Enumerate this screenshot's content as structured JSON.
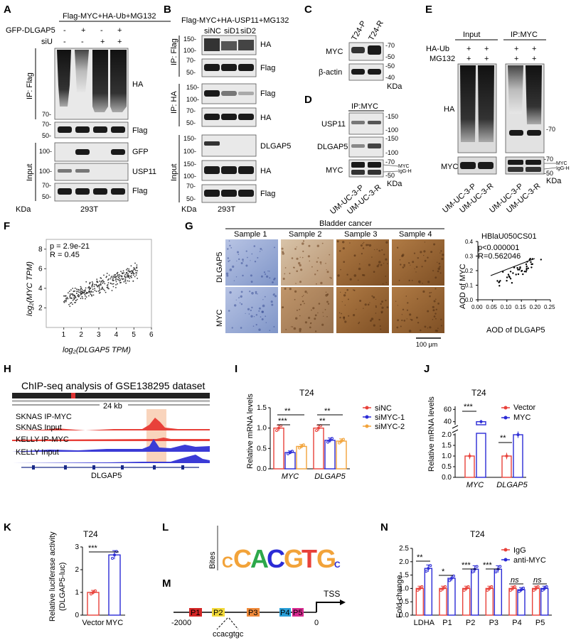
{
  "colors": {
    "red": "#e8413a",
    "blue": "#2b2bd6",
    "orange": "#f2a33a",
    "blot": "#1a1a1a",
    "ihc_blue": "#8ea3d1",
    "ihc_brown": "#9a6232",
    "scatter_line": "#000000"
  },
  "panels": {
    "A": {
      "letter": "A",
      "top": "Flag-MYC+HA-Ub+MG132",
      "rows": [
        "GFP-DLGAP5",
        "siU"
      ],
      "row_values": [
        [
          "-",
          "+",
          "-",
          "+"
        ],
        [
          "-",
          "-",
          "+",
          "+"
        ]
      ],
      "ip_label": "IP: Flag",
      "input_label": "Input",
      "markers": [
        "70-",
        "70-",
        "50-",
        "100-",
        "100-",
        "70-",
        "50-"
      ],
      "bands": [
        "HA",
        "Flag",
        "GFP",
        "USP11",
        "Flag"
      ],
      "kda": "KDa",
      "cell": "293T"
    },
    "B": {
      "letter": "B",
      "top": "Flag-MYC+HA-USP11+MG132",
      "lanes": [
        "siNC",
        "siD1",
        "siD2"
      ],
      "ip1": "IP: Flag",
      "ip2": "IP: HA",
      "input_label": "Input",
      "markers": [
        "150-",
        "100-",
        "70-",
        "50-",
        "150-",
        "100-",
        "70-",
        "50-",
        "150-",
        "100-",
        "150-",
        "100-",
        "70-",
        "50-"
      ],
      "bands": [
        "HA",
        "Flag",
        "Flag",
        "HA",
        "DLGAP5",
        "HA",
        "Flag"
      ],
      "kda": "KDa",
      "cell": "293T"
    },
    "C": {
      "letter": "C",
      "lanes": [
        "T24-P",
        "T24-R"
      ],
      "bands": [
        "MYC",
        "β-actin"
      ],
      "markers": [
        "-70",
        "-50",
        "-50",
        "-40"
      ],
      "kda": "KDa"
    },
    "D": {
      "letter": "D",
      "ip": "IP:MYC",
      "bands": [
        "USP11",
        "DLGAP5",
        "MYC"
      ],
      "markers": [
        "-150",
        "-100",
        "-150",
        "-100",
        "-70",
        "-50"
      ],
      "side": [
        "MYC",
        "IgG-H"
      ],
      "kda": "KDa",
      "lanes": [
        "UM-UC-3-P",
        "UM-UC-3-R"
      ]
    },
    "E": {
      "letter": "E",
      "groups": [
        "Input",
        "IP:MYC"
      ],
      "rows": [
        "HA-Ub",
        "MG132"
      ],
      "plus": "+",
      "bands": [
        "HA",
        "MYC"
      ],
      "markers": [
        "-70",
        "-70",
        "-50"
      ],
      "side": [
        "MYC",
        "IgG-H"
      ],
      "kda": "KDa",
      "lanes": [
        "UM-UC-3-P",
        "UM-UC-3-R",
        "UM-UC-3-P",
        "UM-UC-3-R"
      ]
    },
    "F": {
      "letter": "F",
      "stat1": "p = 2.9e-21",
      "stat2": "R = 0.45",
      "ylabel": "log₂(MYC TPM)",
      "xlabel": "log₂(DLGAP5 TPM)"
    },
    "G": {
      "letter": "G",
      "title": "Bladder cancer",
      "samples": [
        "Sample 1",
        "Sample 2",
        "Sample 3",
        "Sample 4"
      ],
      "rows": [
        "DLGAP5",
        "MYC"
      ],
      "scale": "100 μm",
      "scatter_title": "HBlaU050CS01",
      "stat1": "p<0.000001",
      "stat2": "R=0.562046",
      "ylabel": "AOD of MYC",
      "xlabel": "AOD of DLGAP5"
    },
    "H": {
      "letter": "H",
      "title": "ChIP-seq analysis of GSE138295 dataset",
      "scale": "24 kb",
      "tracks": [
        "SKNAS IP-MYC",
        "SKNAS Input",
        "KELLY IP-MYC",
        "KELLY Input"
      ],
      "gene": "DLGAP5"
    },
    "I": {
      "letter": "I",
      "title": "T24",
      "ylabel": "Relative mRNA levels",
      "legend": [
        "siNC",
        "siMYC-1",
        "siMYC-2"
      ],
      "sig": [
        "***",
        "**",
        "**",
        "**"
      ]
    },
    "J": {
      "letter": "J",
      "title": "T24",
      "ylabel": "Relative mRNA levels",
      "legend": [
        "Vector",
        "MYC"
      ],
      "sig": [
        "***",
        "**"
      ]
    },
    "K": {
      "letter": "K",
      "title": "T24",
      "ylabel1": "Relative luciferase activity",
      "ylabel2": "(DLGAP5-luc)",
      "sig": [
        "***"
      ]
    },
    "L": {
      "letter": "L",
      "ylabel": "Bites",
      "motif": [
        "C",
        "C",
        "A",
        "C",
        "G",
        "T",
        "G",
        "C"
      ]
    },
    "M": {
      "letter": "M",
      "boxes": [
        "P1",
        "P2",
        "P3",
        "P4",
        "P5"
      ],
      "tss": "TSS",
      "start": "-2000",
      "end": "0",
      "site": "ccacgtgc"
    },
    "N": {
      "letter": "N",
      "title": "T24",
      "ylabel": "Fold change",
      "legend": [
        "IgG",
        "anti-MYC"
      ],
      "sig": [
        "**",
        "*",
        "***",
        "***",
        "ns",
        "ns"
      ]
    }
  },
  "chart_data": [
    {
      "type": "scatter",
      "panel": "F",
      "xlabel": "log2(DLGAP5 TPM)",
      "ylabel": "log2(MYC TPM)",
      "xlim": [
        0,
        6
      ],
      "ylim": [
        0,
        9
      ],
      "xticks": [
        1,
        2,
        3,
        4,
        5,
        6
      ],
      "yticks": [
        2,
        4,
        6,
        8
      ],
      "note": "p = 2.9e-21, R = 0.45"
    },
    {
      "type": "scatter",
      "panel": "G",
      "title": "HBlaU050CS01",
      "xlabel": "AOD of DLGAP5",
      "ylabel": "AOD of MYC",
      "xlim": [
        0,
        0.25
      ],
      "ylim": [
        0,
        0.4
      ],
      "xticks": [
        0.0,
        0.05,
        0.1,
        0.15,
        0.2,
        0.25
      ],
      "yticks": [
        0.0,
        0.1,
        0.2,
        0.3,
        0.4
      ],
      "note": "p<0.000001, R=0.562046"
    },
    {
      "type": "bar",
      "panel": "I",
      "title": "T24",
      "ylabel": "Relative mRNA levels",
      "categories": [
        "MYC",
        "DLGAP5"
      ],
      "series": [
        {
          "name": "siNC",
          "values": [
            1.0,
            1.0
          ]
        },
        {
          "name": "siMYC-1",
          "values": [
            0.4,
            0.7
          ]
        },
        {
          "name": "siMYC-2",
          "values": [
            0.55,
            0.68
          ]
        }
      ],
      "ylim": [
        0.0,
        1.5
      ],
      "yticks": [
        0.0,
        0.5,
        1.0,
        1.5
      ]
    },
    {
      "type": "bar",
      "panel": "J",
      "title": "T24",
      "ylabel": "Relative mRNA levels",
      "categories": [
        "MYC",
        "DLGAP5"
      ],
      "series": [
        {
          "name": "Vector",
          "values": [
            1.0,
            1.0
          ]
        },
        {
          "name": "MYC",
          "values": [
            40.0,
            2.0
          ]
        }
      ],
      "yticks": [
        0.0,
        0.5,
        1.0,
        1.5,
        2.0,
        40,
        60
      ],
      "axis_break": true
    },
    {
      "type": "bar",
      "panel": "K",
      "title": "T24",
      "ylabel": "Relative luciferase activity (DLGAP5-luc)",
      "categories": [
        "Vector",
        "MYC"
      ],
      "values": [
        1.0,
        2.65
      ],
      "ylim": [
        0,
        3
      ],
      "yticks": [
        0,
        1,
        2,
        3
      ]
    },
    {
      "type": "bar",
      "panel": "N",
      "title": "T24",
      "ylabel": "Fold change",
      "categories": [
        "LDHA",
        "P1",
        "P2",
        "P3",
        "P4",
        "P5"
      ],
      "series": [
        {
          "name": "IgG",
          "values": [
            1.0,
            1.0,
            1.0,
            1.0,
            1.0,
            1.0
          ]
        },
        {
          "name": "anti-MYC",
          "values": [
            1.75,
            1.38,
            1.72,
            1.72,
            0.95,
            1.0
          ]
        }
      ],
      "ylim": [
        0.0,
        2.5
      ],
      "yticks": [
        0.0,
        0.5,
        1.0,
        1.5,
        2.0,
        2.5
      ]
    }
  ]
}
